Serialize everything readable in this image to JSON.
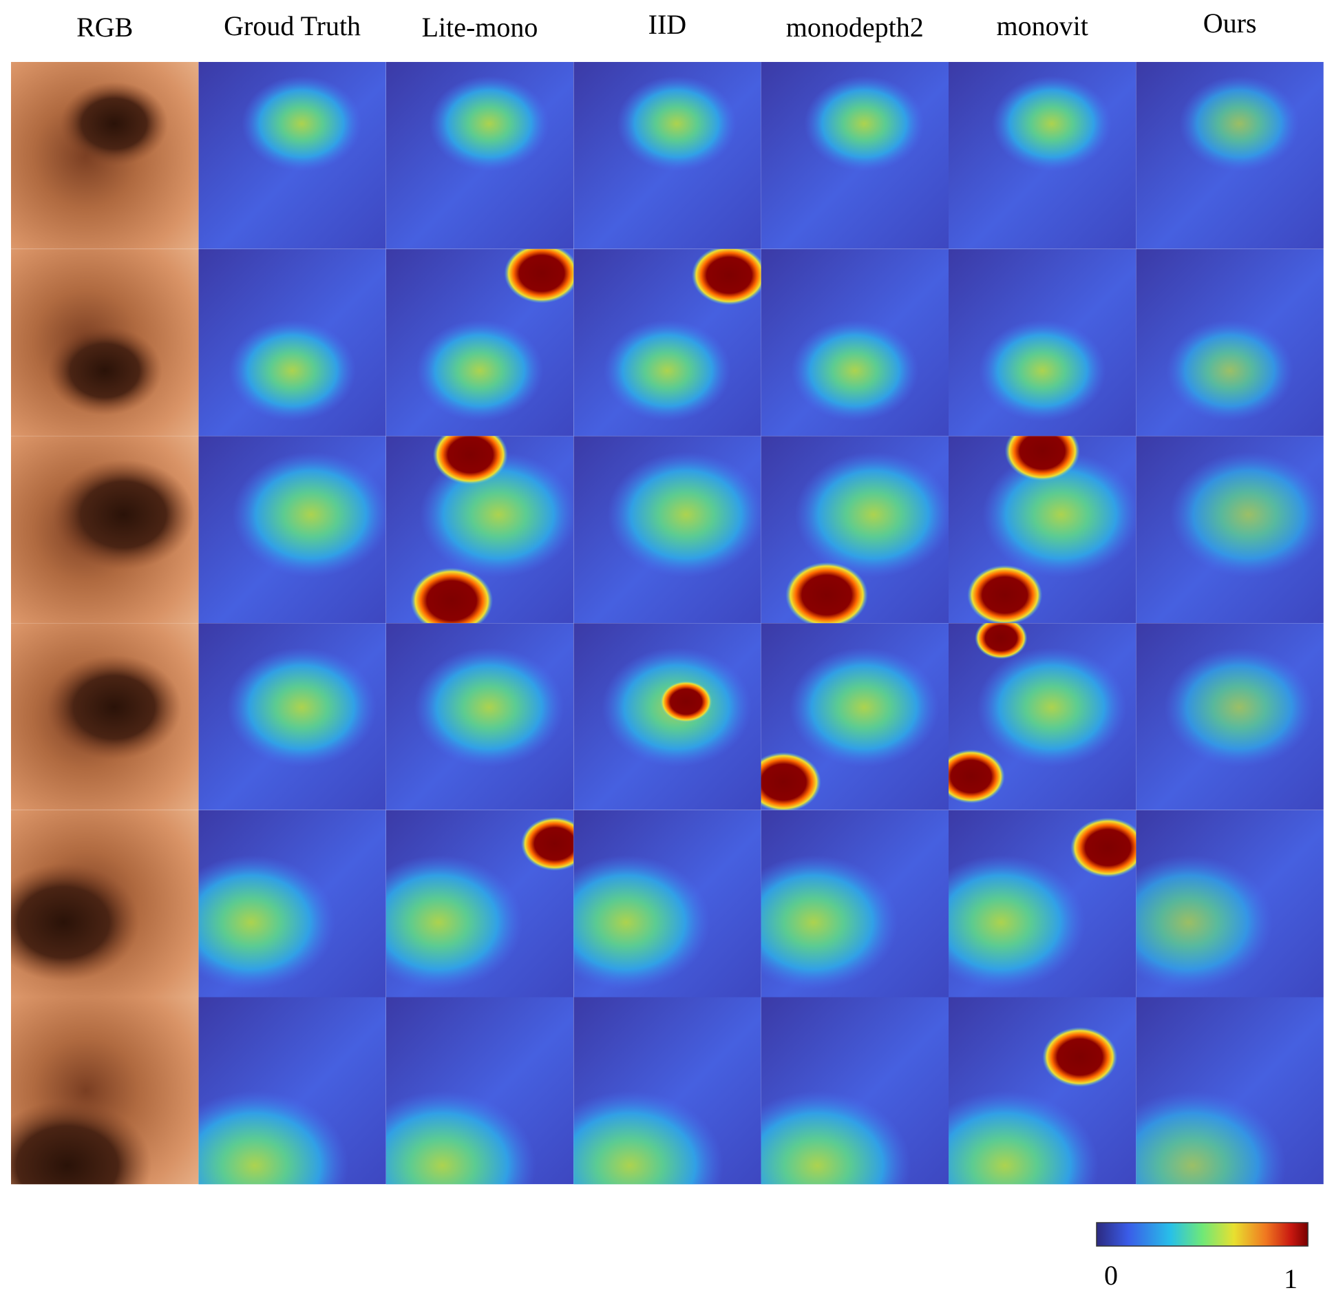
{
  "columns": [
    "RGB",
    "Groud Truth",
    "Lite-mono",
    "IID",
    "monodepth2",
    "monovit",
    "Ours"
  ],
  "colorbar": {
    "ticks": [
      0,
      1
    ]
  }
}
